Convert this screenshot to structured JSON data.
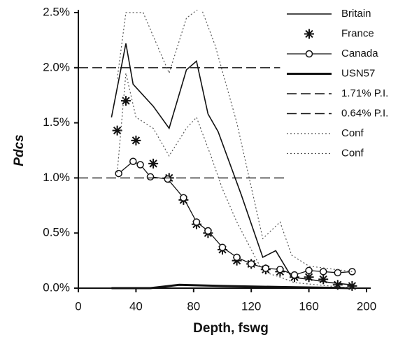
{
  "chart_data": {
    "type": "line",
    "x_label": "Depth, fswg",
    "y_label": "Pdcs",
    "xlim": [
      0,
      200
    ],
    "xticks": [
      0,
      40,
      80,
      120,
      160,
      200
    ],
    "ylim": [
      0,
      2.5
    ],
    "yticks": [
      {
        "value": 0,
        "label": "0.0%"
      },
      {
        "value": 0.5,
        "label": "0.5%"
      },
      {
        "value": 1.0,
        "label": "1.0%"
      },
      {
        "value": 1.5,
        "label": "1.5%"
      },
      {
        "value": 2.0,
        "label": "2.0%"
      },
      {
        "value": 2.5,
        "label": "2.5%"
      }
    ],
    "legend": "top-right",
    "series": [
      {
        "name": "Britain",
        "color": "#111",
        "style": "solid",
        "width": 1.6,
        "x": [
          23,
          33,
          38,
          52,
          63,
          75,
          82,
          90,
          97,
          113,
          128,
          137,
          148,
          160,
          175,
          190
        ],
        "values": [
          1.55,
          2.22,
          1.85,
          1.65,
          1.45,
          1.98,
          2.06,
          1.58,
          1.42,
          0.85,
          0.28,
          0.34,
          0.1,
          0.08,
          0.05,
          0.03
        ]
      },
      {
        "name": "France",
        "color": "#111",
        "marker": "star",
        "x": [
          27,
          33,
          40,
          52,
          63,
          73,
          82,
          90,
          100,
          110,
          120,
          130,
          140,
          150,
          160,
          170,
          180,
          190
        ],
        "values": [
          1.43,
          1.7,
          1.34,
          1.13,
          1.0,
          0.8,
          0.58,
          0.5,
          0.35,
          0.25,
          0.22,
          0.17,
          0.15,
          0.1,
          0.1,
          0.08,
          0.03,
          0.02
        ]
      },
      {
        "name": "Canada",
        "color": "#111",
        "style": "solid",
        "width": 1.3,
        "marker": "circle",
        "x": [
          28,
          38,
          43,
          50,
          62,
          73,
          82,
          90,
          100,
          110,
          120,
          130,
          140,
          150,
          160,
          170,
          180,
          190
        ],
        "values": [
          1.04,
          1.15,
          1.12,
          1.01,
          0.99,
          0.82,
          0.6,
          0.52,
          0.37,
          0.28,
          0.22,
          0.18,
          0.17,
          0.12,
          0.16,
          0.15,
          0.14,
          0.15
        ]
      },
      {
        "name": "USN57",
        "color": "#111",
        "style": "solid",
        "width": 3,
        "x": [
          23,
          50,
          70,
          100,
          140,
          190
        ],
        "values": [
          0,
          0,
          0.03,
          0.02,
          0.01,
          0
        ]
      },
      {
        "name": "1.71% P.I.",
        "color": "#111",
        "style": "dashed",
        "width": 1.4,
        "x": [
          0,
          140
        ],
        "values": [
          2.0,
          2.0
        ]
      },
      {
        "name": "0.64% P.I.",
        "color": "#111",
        "style": "dashed",
        "width": 1.4,
        "x": [
          0,
          145
        ],
        "values": [
          1.0,
          1.0
        ]
      },
      {
        "name": "Conf",
        "color": "#555",
        "style": "dotted",
        "width": 1.2,
        "x": [
          27,
          33,
          45,
          63,
          75,
          85,
          95,
          110,
          128,
          140,
          148,
          160,
          190
        ],
        "values": [
          1.9,
          2.5,
          2.5,
          1.95,
          2.45,
          2.55,
          2.2,
          1.5,
          0.45,
          0.6,
          0.3,
          0.2,
          0.15
        ]
      },
      {
        "name": "Conf",
        "color": "#555",
        "style": "dotted",
        "width": 1.2,
        "x": [
          27,
          33,
          40,
          52,
          63,
          75,
          82,
          92,
          100,
          110,
          128,
          140,
          150,
          190
        ],
        "values": [
          1.05,
          1.95,
          1.55,
          1.45,
          1.2,
          1.45,
          1.55,
          1.2,
          0.9,
          0.6,
          0.15,
          0.1,
          0.05,
          0
        ]
      }
    ]
  }
}
